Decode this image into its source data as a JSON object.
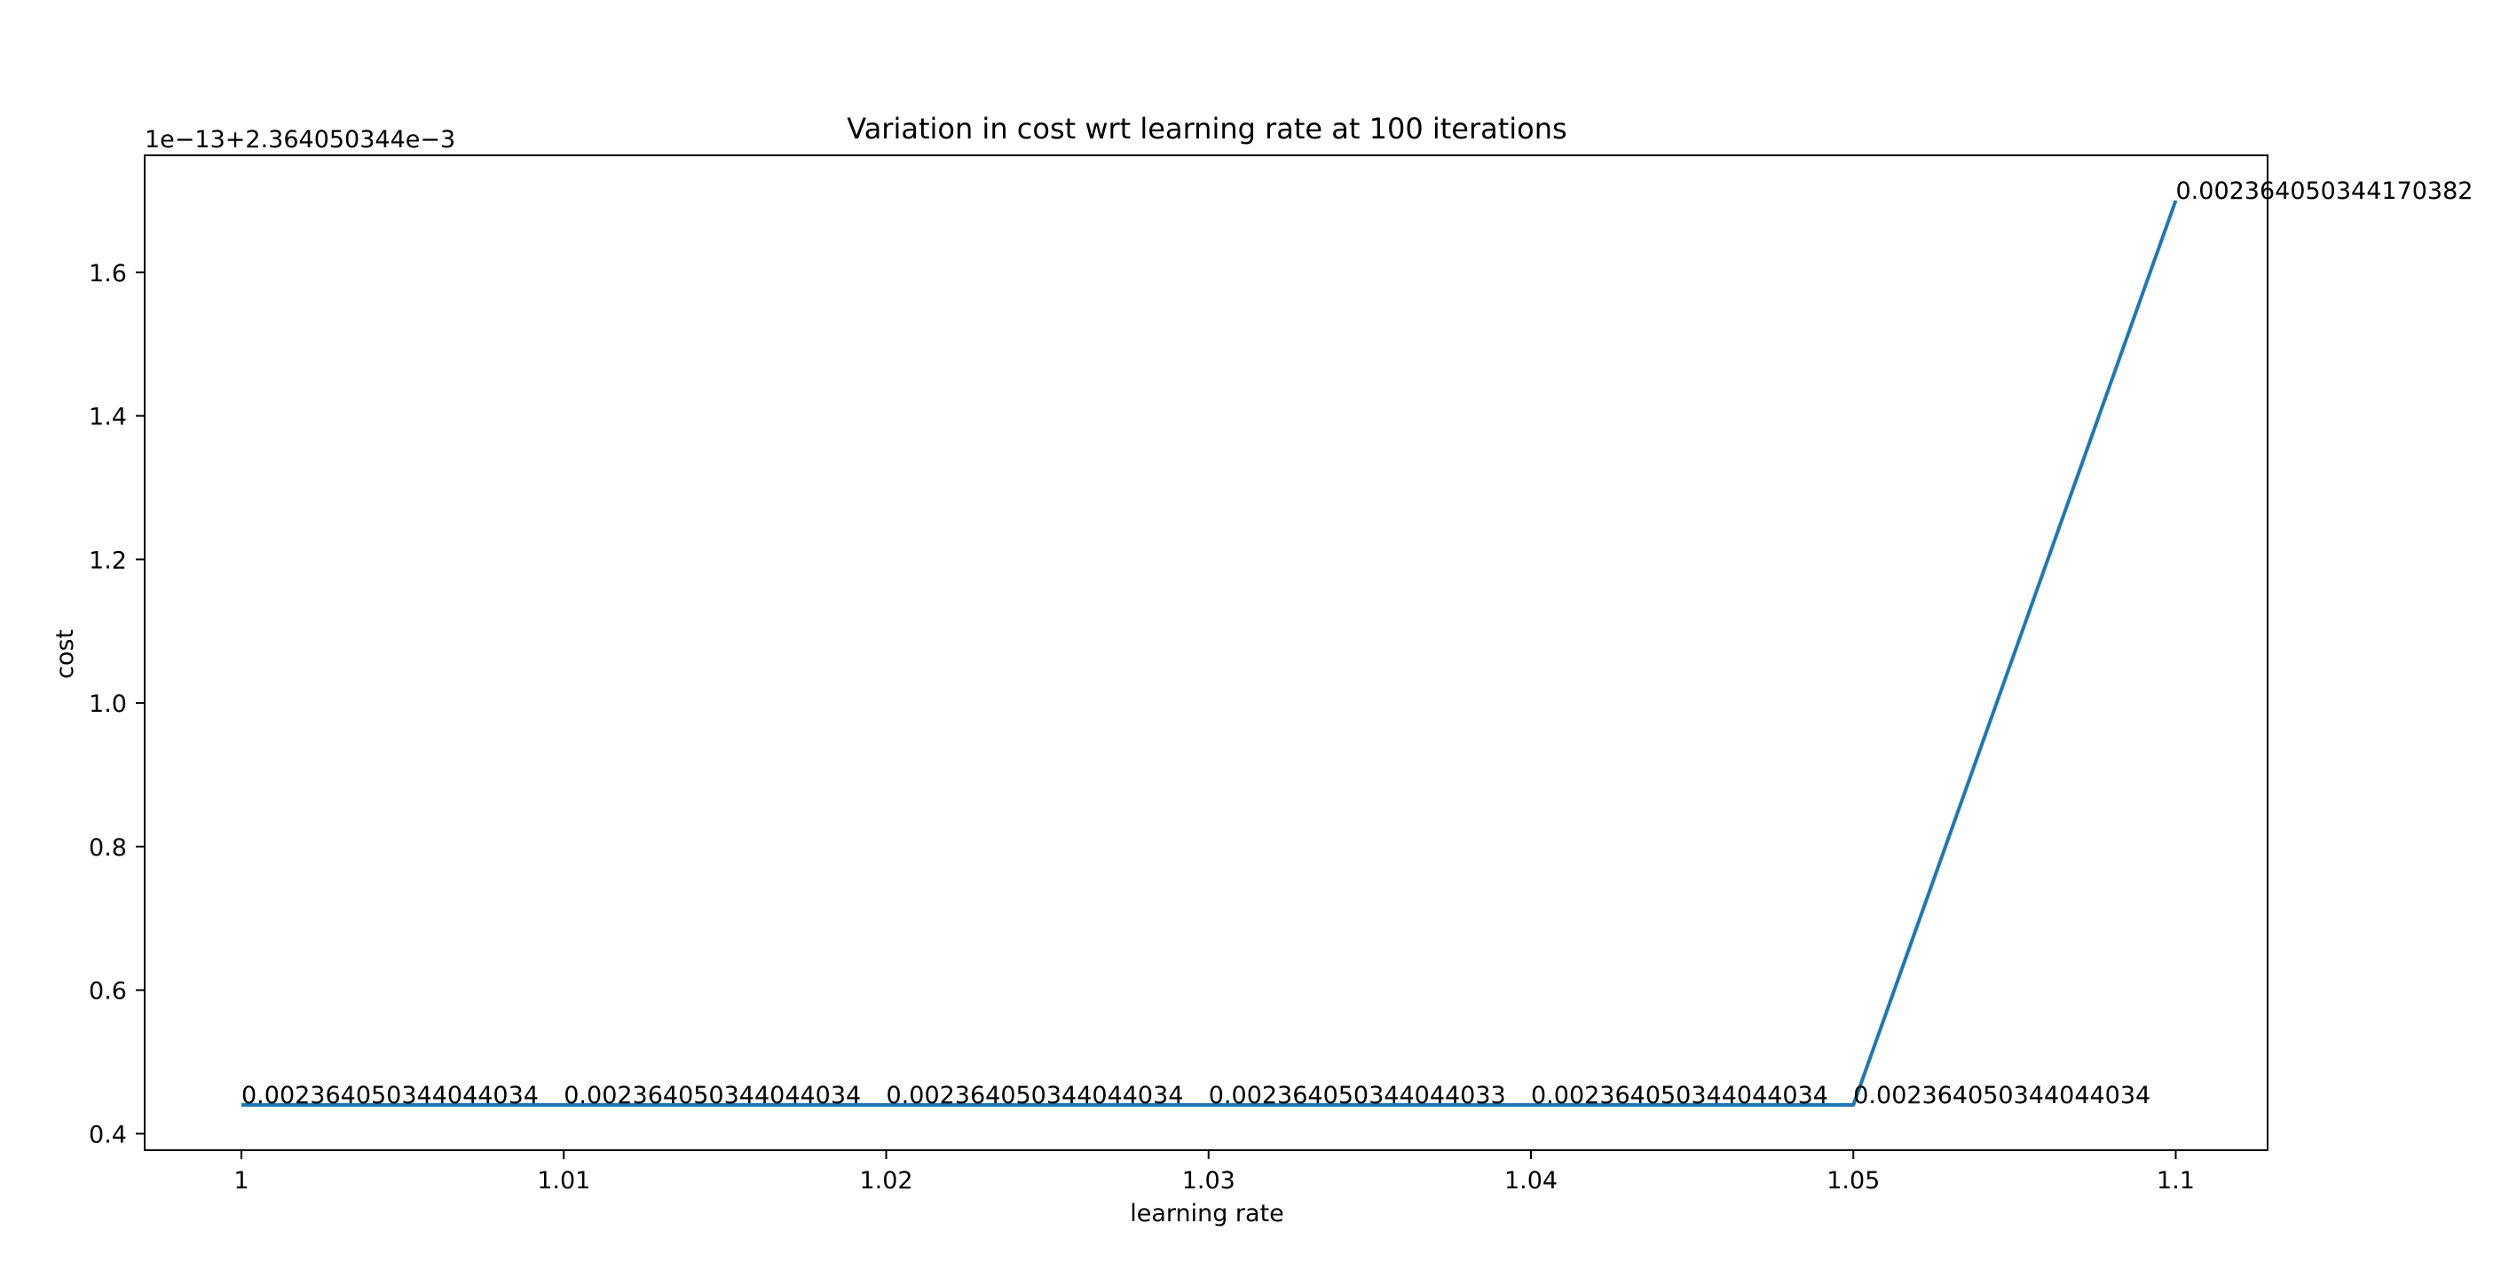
{
  "chart_data": {
    "type": "line",
    "title": "Variation in cost wrt learning rate at 100 iterations",
    "xlabel": "learning rate",
    "ylabel": "cost",
    "offset_label": "1e−13+2.364050344e−3",
    "x": [
      1,
      1.01,
      1.02,
      1.03,
      1.04,
      1.05,
      1.1
    ],
    "y_offset_scaled": [
      0.44,
      0.44,
      0.44,
      0.44,
      0.44,
      0.44,
      1.7
    ],
    "y": [
      0.002364050344044034,
      0.002364050344044034,
      0.002364050344044034,
      0.002364050344044033,
      0.002364050344044034,
      0.002364050344044034,
      0.002364050344170382
    ],
    "data_labels": [
      "0.002364050344044034",
      "0.002364050344044034",
      "0.002364050344044034",
      "0.002364050344044033",
      "0.002364050344044034",
      "0.002364050344044034",
      "0.002364050344170382"
    ],
    "x_ticks": [
      {
        "value": 1,
        "label": "1"
      },
      {
        "value": 1.01,
        "label": "1.01"
      },
      {
        "value": 1.02,
        "label": "1.02"
      },
      {
        "value": 1.03,
        "label": "1.03"
      },
      {
        "value": 1.04,
        "label": "1.04"
      },
      {
        "value": 1.05,
        "label": "1.05"
      },
      {
        "value": 1.1,
        "label": "1.1"
      }
    ],
    "y_ticks": [
      {
        "value": 0.4,
        "label": "0.4"
      },
      {
        "value": 0.6,
        "label": "0.6"
      },
      {
        "value": 0.8,
        "label": "0.8"
      },
      {
        "value": 1.0,
        "label": "1.0"
      },
      {
        "value": 1.2,
        "label": "1.2"
      },
      {
        "value": 1.4,
        "label": "1.4"
      },
      {
        "value": 1.6,
        "label": "1.6"
      }
    ],
    "xlim": [
      0.997,
      1.103
    ],
    "ylim": [
      0.377,
      1.763
    ],
    "x_tick_positions": [
      1,
      1.01,
      1.02,
      1.03,
      1.04,
      1.05,
      1.1
    ],
    "grid": false,
    "line_color": "#1f77b4"
  }
}
